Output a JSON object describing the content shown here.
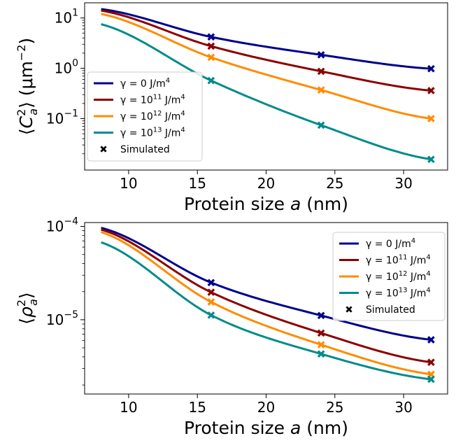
{
  "chart_data": [
    {
      "type": "line",
      "ylabel": "⟨C_a²⟩ (μm⁻²)",
      "ylabel_parts": {
        "open": "⟨",
        "base": "C",
        "sub": "a",
        "sup": "2",
        "close": "⟩",
        "unit_open": "(μm",
        "unit_sup": "−2",
        "unit_close": ")"
      },
      "xlabel": "Protein size a (nm)",
      "xlabel_parts": {
        "prefix": "Protein size ",
        "var": "a",
        "suffix": " (nm)"
      },
      "yscale": "log",
      "xlim": [
        6.8,
        33.2
      ],
      "ylim": [
        0.0095,
        20
      ],
      "xticks": [
        10,
        15,
        20,
        25,
        30
      ],
      "xtick_labels": [
        "10",
        "15",
        "20",
        "25",
        "30"
      ],
      "yticks": [
        {
          "value": 10,
          "base": "10",
          "exp": "1"
        },
        {
          "value": 1,
          "base": "10",
          "exp": "0"
        },
        {
          "value": 0.1,
          "base": "10",
          "exp": "−1"
        }
      ],
      "legend": {
        "loc": "lower left",
        "simulated_label": "Simulated"
      },
      "series": [
        {
          "name": "γ = 0 J/m⁴",
          "label": {
            "gamma": "γ = 0",
            "exp": "",
            "unit": " J/m",
            "unit_exp": "4"
          },
          "color": "#00008b",
          "curve": {
            "x": [
              8,
              16,
              24,
              32
            ],
            "y": [
              15,
              4.2,
              1.85,
              0.98
            ]
          },
          "simulated": {
            "x": [
              16,
              24,
              32
            ],
            "y": [
              4.2,
              1.85,
              0.98
            ]
          }
        },
        {
          "name": "γ = 10¹¹ J/m⁴",
          "label": {
            "gamma": "γ = 10",
            "exp": "11",
            "unit": " J/m",
            "unit_exp": "4"
          },
          "color": "#8b0000",
          "curve": {
            "x": [
              8,
              16,
              24,
              32
            ],
            "y": [
              14,
              2.75,
              0.87,
              0.36
            ]
          },
          "simulated": {
            "x": [
              16,
              24,
              32
            ],
            "y": [
              2.75,
              0.87,
              0.36
            ]
          }
        },
        {
          "name": "γ = 10¹² J/m⁴",
          "label": {
            "gamma": "γ = 10",
            "exp": "12",
            "unit": " J/m",
            "unit_exp": "4"
          },
          "color": "#ff8c00",
          "curve": {
            "x": [
              8,
              16,
              24,
              32
            ],
            "y": [
              12,
              1.65,
              0.37,
              0.1
            ]
          },
          "simulated": {
            "x": [
              16,
              24,
              32
            ],
            "y": [
              1.65,
              0.37,
              0.1
            ]
          }
        },
        {
          "name": "γ = 10¹³ J/m⁴",
          "label": {
            "gamma": "γ = 10",
            "exp": "13",
            "unit": " J/m",
            "unit_exp": "4"
          },
          "color": "#008b8b",
          "curve": {
            "x": [
              8,
              16,
              24,
              32
            ],
            "y": [
              7.5,
              0.57,
              0.074,
              0.0155
            ]
          },
          "simulated": {
            "x": [
              16,
              24,
              32
            ],
            "y": [
              0.57,
              0.074,
              0.0155
            ]
          }
        }
      ]
    },
    {
      "type": "line",
      "ylabel": "⟨ρ_a²⟩",
      "ylabel_parts": {
        "open": "⟨",
        "base": "ρ",
        "sub": "a",
        "sup": "2",
        "close": "⟩"
      },
      "xlabel": "Protein size a (nm)",
      "xlabel_parts": {
        "prefix": "Protein size ",
        "var": "a",
        "suffix": " (nm)"
      },
      "yscale": "log",
      "xlim": [
        6.8,
        33.2
      ],
      "ylim": [
        1.6e-06,
        0.00011
      ],
      "xticks": [
        10,
        15,
        20,
        25,
        30
      ],
      "xtick_labels": [
        "10",
        "15",
        "20",
        "25",
        "30"
      ],
      "yticks": [
        {
          "value": 0.0001,
          "base": "10",
          "exp": "−4"
        },
        {
          "value": 1e-05,
          "base": "10",
          "exp": "−5"
        }
      ],
      "legend": {
        "loc": "upper right",
        "simulated_label": "Simulated"
      },
      "series": [
        {
          "name": "γ = 0 J/m⁴",
          "label": {
            "gamma": "γ = 0",
            "exp": "",
            "unit": " J/m",
            "unit_exp": "4"
          },
          "color": "#00008b",
          "curve": {
            "x": [
              8,
              16,
              24,
              32
            ],
            "y": [
              9.65e-05,
              2.5e-05,
              1.11e-05,
              6.1e-06
            ]
          },
          "simulated": {
            "x": [
              16,
              24,
              32
            ],
            "y": [
              2.5e-05,
              1.11e-05,
              6.1e-06
            ]
          }
        },
        {
          "name": "γ = 10¹¹ J/m⁴",
          "label": {
            "gamma": "γ = 10",
            "exp": "11",
            "unit": " J/m",
            "unit_exp": "4"
          },
          "color": "#8b0000",
          "curve": {
            "x": [
              8,
              16,
              24,
              32
            ],
            "y": [
              9.25e-05,
              1.97e-05,
              7.2e-06,
              3.5e-06
            ]
          },
          "simulated": {
            "x": [
              16,
              24,
              32
            ],
            "y": [
              1.97e-05,
              7.2e-06,
              3.5e-06
            ]
          }
        },
        {
          "name": "γ = 10¹² J/m⁴",
          "label": {
            "gamma": "γ = 10",
            "exp": "12",
            "unit": " J/m",
            "unit_exp": "4"
          },
          "color": "#ff8c00",
          "curve": {
            "x": [
              8,
              16,
              24,
              32
            ],
            "y": [
              8.7e-05,
              1.55e-05,
              5.4e-06,
              2.6e-06
            ]
          },
          "simulated": {
            "x": [
              16,
              24,
              32
            ],
            "y": [
              1.55e-05,
              5.4e-06,
              2.6e-06
            ]
          }
        },
        {
          "name": "γ = 10¹³ J/m⁴",
          "label": {
            "gamma": "γ = 10",
            "exp": "13",
            "unit": " J/m",
            "unit_exp": "4"
          },
          "color": "#008b8b",
          "curve": {
            "x": [
              8,
              16,
              24,
              32
            ],
            "y": [
              6.75e-05,
              1.12e-05,
              4.3e-06,
              2.3e-06
            ]
          },
          "simulated": {
            "x": [
              16,
              24,
              32
            ],
            "y": [
              1.12e-05,
              4.3e-06,
              2.3e-06
            ]
          }
        }
      ]
    }
  ]
}
